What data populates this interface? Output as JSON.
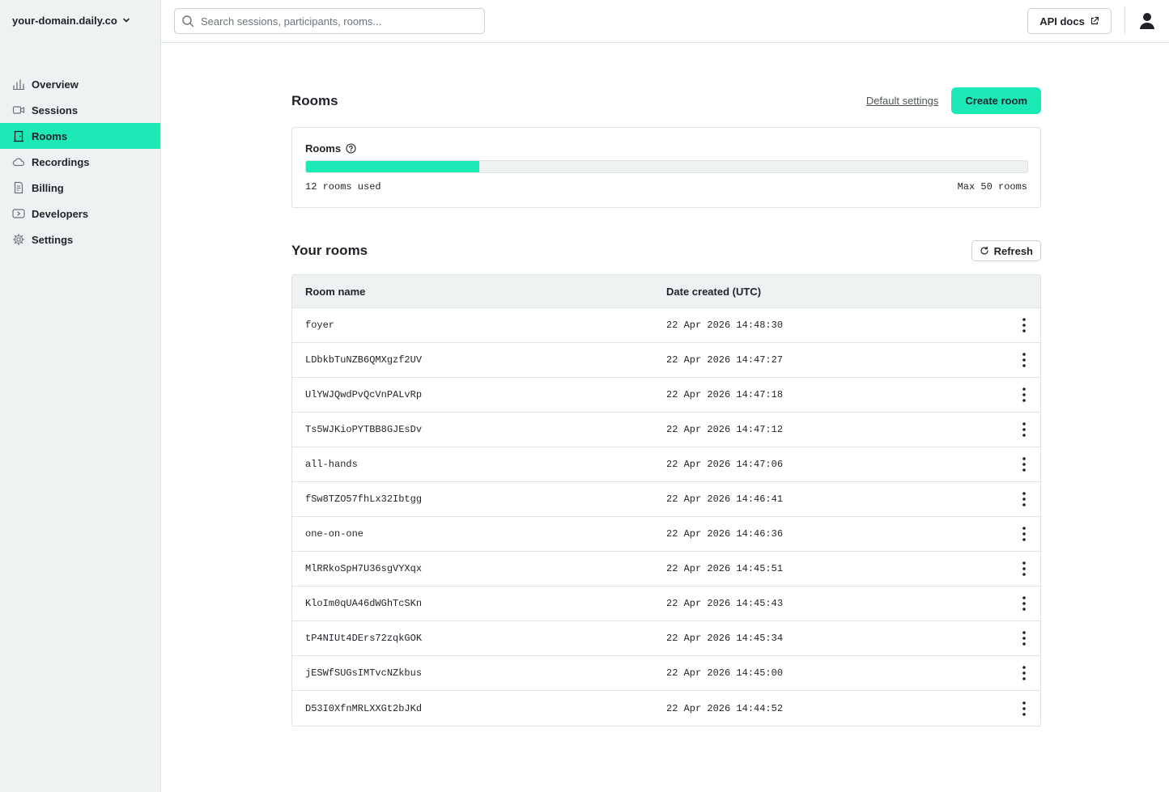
{
  "sidebar": {
    "domain": "your-domain.daily.co",
    "items": [
      {
        "label": "Overview",
        "icon": "chart-icon"
      },
      {
        "label": "Sessions",
        "icon": "video-icon"
      },
      {
        "label": "Rooms",
        "icon": "door-icon",
        "active": true
      },
      {
        "label": "Recordings",
        "icon": "cloud-icon"
      },
      {
        "label": "Billing",
        "icon": "receipt-icon"
      },
      {
        "label": "Developers",
        "icon": "code-icon"
      },
      {
        "label": "Settings",
        "icon": "gear-icon"
      }
    ]
  },
  "topbar": {
    "search_placeholder": "Search sessions, participants, rooms...",
    "api_docs_label": "API docs"
  },
  "page": {
    "title": "Rooms",
    "default_settings_label": "Default settings",
    "create_room_label": "Create room"
  },
  "usage": {
    "title": "Rooms",
    "used": 12,
    "max": 50,
    "used_label": "12 rooms used",
    "max_label": "Max 50 rooms"
  },
  "rooms_section": {
    "title": "Your rooms",
    "refresh_label": "Refresh",
    "columns": [
      "Room name",
      "Date created (UTC)"
    ],
    "rows": [
      {
        "name": "foyer",
        "created": "22 Apr 2026 14:48:30"
      },
      {
        "name": "LDbkbTuNZB6QMXgzf2UV",
        "created": "22 Apr 2026 14:47:27"
      },
      {
        "name": "UlYWJQwdPvQcVnPALvRp",
        "created": "22 Apr 2026 14:47:18"
      },
      {
        "name": "Ts5WJKioPYTBB8GJEsDv",
        "created": "22 Apr 2026 14:47:12"
      },
      {
        "name": "all-hands",
        "created": "22 Apr 2026 14:47:06"
      },
      {
        "name": "fSw8TZO57fhLx32Ibtgg",
        "created": "22 Apr 2026 14:46:41"
      },
      {
        "name": "one-on-one",
        "created": "22 Apr 2026 14:46:36"
      },
      {
        "name": "MlRRkoSpH7U36sgVYXqx",
        "created": "22 Apr 2026 14:45:51"
      },
      {
        "name": "KloIm0qUA46dWGhTcSKn",
        "created": "22 Apr 2026 14:45:43"
      },
      {
        "name": "tP4NIUt4DErs72zqkGOK",
        "created": "22 Apr 2026 14:45:34"
      },
      {
        "name": "jESWfSUGsIMTvcNZkbus",
        "created": "22 Apr 2026 14:45:00"
      },
      {
        "name": "D53I0XfnMRLXXGt2bJKd",
        "created": "22 Apr 2026 14:44:52"
      }
    ]
  },
  "colors": {
    "accent": "#1de9b6",
    "sidebar_bg": "#eff2f2",
    "border": "#dde3e4",
    "text": "#1f2328"
  }
}
